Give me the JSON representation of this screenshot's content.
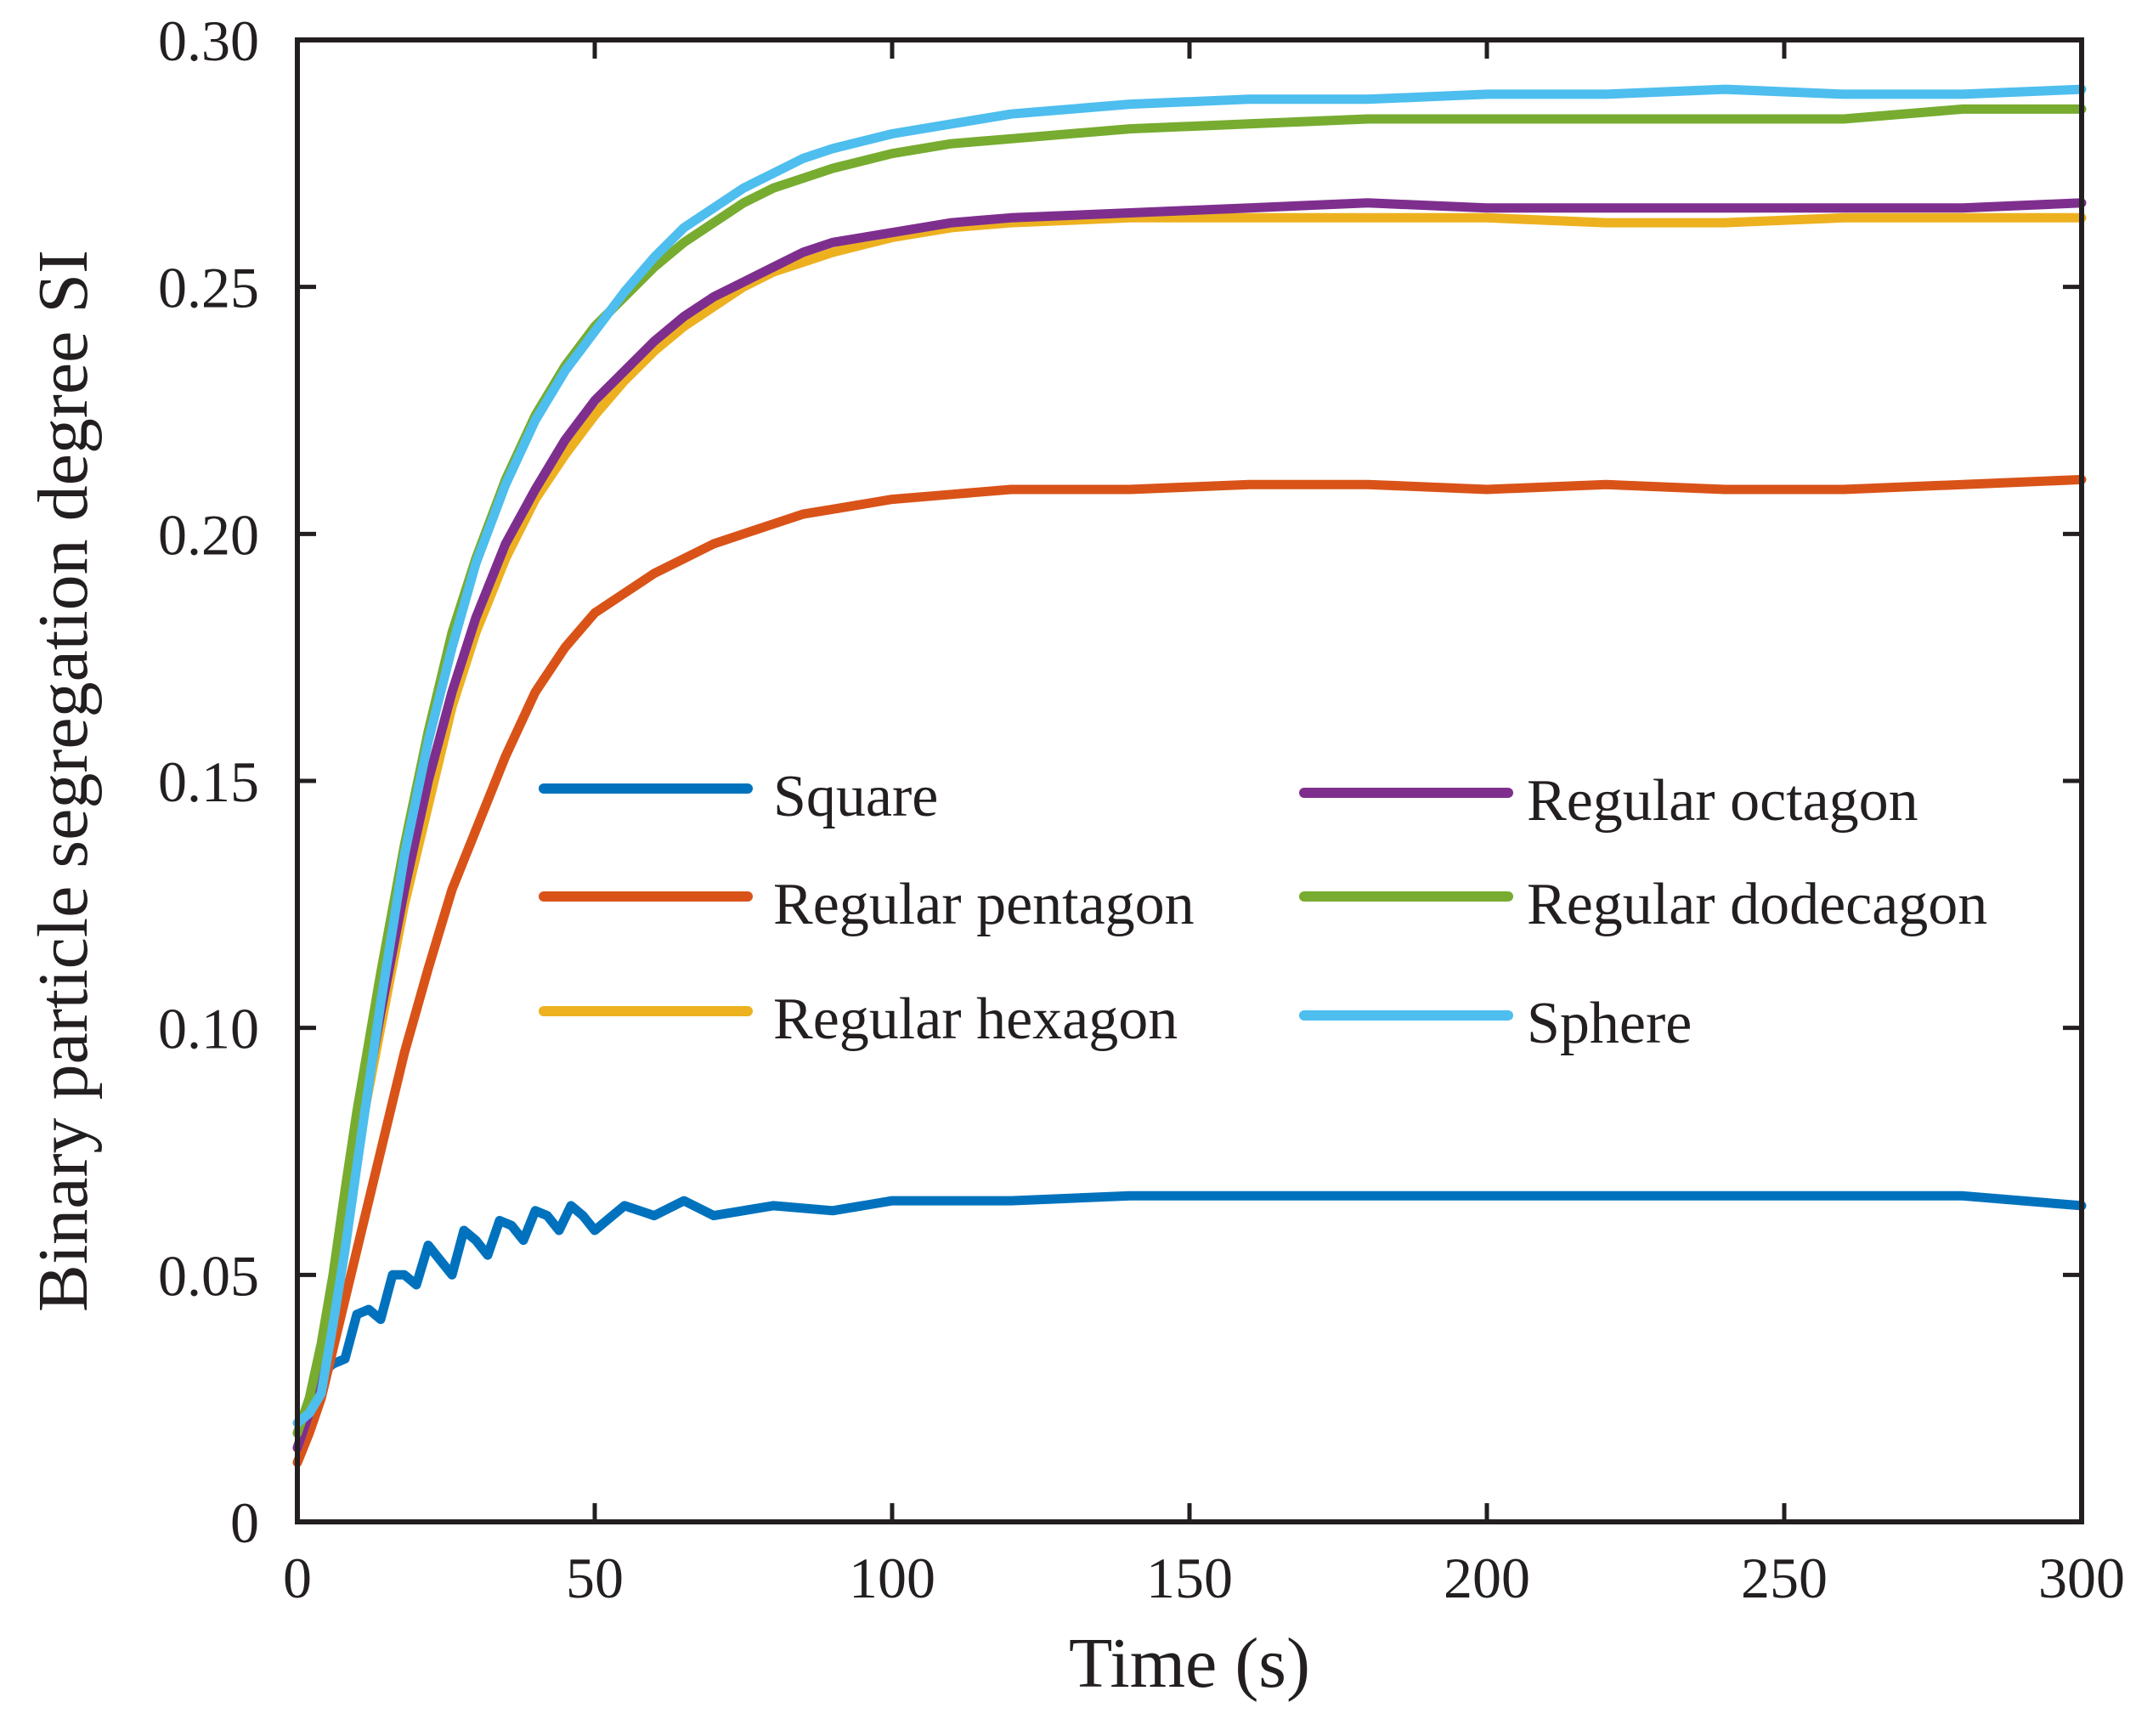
{
  "chart_data": {
    "type": "line",
    "title": "",
    "xlabel": "Time (s)",
    "ylabel": "Binary particle segregation degree SI",
    "xlim": [
      0,
      300
    ],
    "ylim": [
      0,
      0.3
    ],
    "xticks": [
      0,
      50,
      100,
      150,
      200,
      250,
      300
    ],
    "xtick_labels": [
      "0",
      "50",
      "100",
      "150",
      "200",
      "250",
      "300"
    ],
    "yticks": [
      0,
      0.05,
      0.1,
      0.15,
      0.2,
      0.25,
      0.3
    ],
    "ytick_labels": [
      "0",
      "0.05",
      "0.10",
      "0.15",
      "0.20",
      "0.25",
      "0.30"
    ],
    "grid": false,
    "legend_position": "center",
    "series": [
      {
        "name": "Square",
        "color": "#0072bd",
        "x": [
          0,
          2,
          4,
          6,
          8,
          10,
          12,
          14,
          16,
          18,
          20,
          22,
          24,
          26,
          28,
          30,
          32,
          34,
          36,
          38,
          40,
          42,
          44,
          46,
          48,
          50,
          55,
          60,
          65,
          70,
          80,
          90,
          100,
          120,
          140,
          160,
          180,
          200,
          220,
          240,
          260,
          280,
          300
        ],
        "values": [
          0.018,
          0.022,
          0.03,
          0.032,
          0.033,
          0.042,
          0.043,
          0.041,
          0.05,
          0.05,
          0.048,
          0.056,
          0.053,
          0.05,
          0.059,
          0.057,
          0.054,
          0.061,
          0.06,
          0.057,
          0.063,
          0.062,
          0.059,
          0.064,
          0.062,
          0.059,
          0.064,
          0.062,
          0.065,
          0.062,
          0.064,
          0.063,
          0.065,
          0.065,
          0.066,
          0.066,
          0.066,
          0.066,
          0.066,
          0.066,
          0.066,
          0.066,
          0.064
        ]
      },
      {
        "name": "Regular pentagon",
        "color": "#d95319",
        "x": [
          0,
          2,
          4,
          6,
          8,
          10,
          14,
          18,
          22,
          26,
          30,
          35,
          40,
          45,
          50,
          55,
          60,
          65,
          70,
          75,
          80,
          85,
          90,
          100,
          110,
          120,
          140,
          160,
          180,
          200,
          220,
          240,
          260,
          280,
          300
        ],
        "values": [
          0.012,
          0.018,
          0.025,
          0.035,
          0.045,
          0.055,
          0.075,
          0.095,
          0.112,
          0.128,
          0.14,
          0.155,
          0.168,
          0.177,
          0.184,
          0.188,
          0.192,
          0.195,
          0.198,
          0.2,
          0.202,
          0.204,
          0.205,
          0.207,
          0.208,
          0.209,
          0.209,
          0.21,
          0.21,
          0.209,
          0.21,
          0.209,
          0.209,
          0.21,
          0.211
        ]
      },
      {
        "name": "Regular hexagon",
        "color": "#edb120",
        "x": [
          0,
          2,
          4,
          6,
          8,
          10,
          14,
          18,
          22,
          26,
          30,
          35,
          40,
          45,
          50,
          55,
          60,
          65,
          70,
          75,
          80,
          85,
          90,
          100,
          110,
          120,
          140,
          160,
          180,
          200,
          220,
          240,
          260,
          280,
          300
        ],
        "values": [
          0.015,
          0.022,
          0.032,
          0.045,
          0.06,
          0.075,
          0.1,
          0.125,
          0.145,
          0.165,
          0.18,
          0.195,
          0.207,
          0.216,
          0.224,
          0.231,
          0.237,
          0.242,
          0.246,
          0.25,
          0.253,
          0.255,
          0.257,
          0.26,
          0.262,
          0.263,
          0.264,
          0.264,
          0.264,
          0.264,
          0.263,
          0.263,
          0.264,
          0.264,
          0.264
        ]
      },
      {
        "name": "Regular octagon",
        "color": "#7e2f8e",
        "x": [
          0,
          2,
          4,
          6,
          8,
          10,
          14,
          18,
          22,
          26,
          30,
          35,
          40,
          45,
          50,
          55,
          60,
          65,
          70,
          75,
          80,
          85,
          90,
          100,
          110,
          120,
          140,
          160,
          180,
          200,
          220,
          240,
          260,
          280,
          300
        ],
        "values": [
          0.015,
          0.022,
          0.032,
          0.045,
          0.06,
          0.076,
          0.103,
          0.128,
          0.15,
          0.168,
          0.183,
          0.198,
          0.209,
          0.219,
          0.227,
          0.233,
          0.239,
          0.244,
          0.248,
          0.251,
          0.254,
          0.257,
          0.259,
          0.261,
          0.263,
          0.264,
          0.265,
          0.266,
          0.267,
          0.266,
          0.266,
          0.266,
          0.266,
          0.266,
          0.267
        ]
      },
      {
        "name": "Regular dodecagon",
        "color": "#77ac30",
        "x": [
          0,
          2,
          4,
          6,
          8,
          10,
          14,
          18,
          22,
          26,
          30,
          35,
          40,
          45,
          50,
          55,
          60,
          65,
          70,
          75,
          80,
          85,
          90,
          100,
          110,
          120,
          140,
          160,
          180,
          200,
          220,
          240,
          260,
          280,
          300
        ],
        "values": [
          0.018,
          0.025,
          0.036,
          0.05,
          0.067,
          0.083,
          0.111,
          0.137,
          0.16,
          0.18,
          0.195,
          0.211,
          0.224,
          0.234,
          0.242,
          0.248,
          0.254,
          0.259,
          0.263,
          0.267,
          0.27,
          0.272,
          0.274,
          0.277,
          0.279,
          0.28,
          0.282,
          0.283,
          0.284,
          0.284,
          0.284,
          0.284,
          0.284,
          0.286,
          0.286
        ]
      },
      {
        "name": "Sphere",
        "color": "#4dbeee",
        "x": [
          0,
          2,
          4,
          6,
          8,
          10,
          14,
          18,
          22,
          26,
          30,
          35,
          40,
          45,
          50,
          55,
          60,
          65,
          70,
          75,
          80,
          85,
          90,
          100,
          110,
          120,
          140,
          160,
          180,
          200,
          220,
          240,
          260,
          280,
          300
        ],
        "values": [
          0.02,
          0.022,
          0.026,
          0.04,
          0.055,
          0.072,
          0.105,
          0.135,
          0.158,
          0.177,
          0.194,
          0.21,
          0.223,
          0.233,
          0.241,
          0.249,
          0.256,
          0.262,
          0.266,
          0.27,
          0.273,
          0.276,
          0.278,
          0.281,
          0.283,
          0.285,
          0.287,
          0.288,
          0.288,
          0.289,
          0.289,
          0.29,
          0.289,
          0.289,
          0.29
        ]
      }
    ]
  }
}
